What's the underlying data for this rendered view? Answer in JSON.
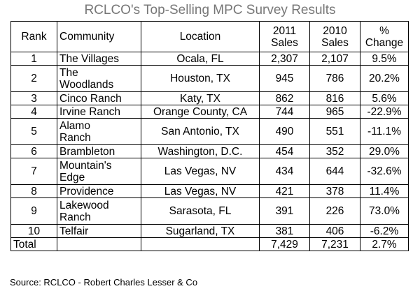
{
  "title": "RCLCO's Top-Selling MPC Survey Results",
  "headers": {
    "rank": "Rank",
    "community": "Community",
    "location": "Location",
    "sales_2011_line1": "2011",
    "sales_2011_line2": "Sales",
    "sales_2010_line1": "2010",
    "sales_2010_line2": "Sales",
    "change_line1": "%",
    "change_line2": "Change"
  },
  "rows": [
    {
      "rank": "1",
      "community_line1": "The Villages",
      "community_line2": "",
      "location": "Ocala, FL",
      "sales_2011": "2,307",
      "sales_2010": "2,107",
      "change": "9.5%"
    },
    {
      "rank": "2",
      "community_line1": "The",
      "community_line2": "Woodlands",
      "location": "Houston, TX",
      "sales_2011": "945",
      "sales_2010": "786",
      "change": "20.2%"
    },
    {
      "rank": "3",
      "community_line1": "Cinco Ranch",
      "community_line2": "",
      "location": "Katy, TX",
      "sales_2011": "862",
      "sales_2010": "816",
      "change": "5.6%"
    },
    {
      "rank": "4",
      "community_line1": "Irvine Ranch",
      "community_line2": "",
      "location": "Orange County, CA",
      "sales_2011": "744",
      "sales_2010": "965",
      "change": "-22.9%"
    },
    {
      "rank": "5",
      "community_line1": "Alamo",
      "community_line2": "Ranch",
      "location": "San Antonio, TX",
      "sales_2011": "490",
      "sales_2010": "551",
      "change": "-11.1%"
    },
    {
      "rank": "6",
      "community_line1": "Brambleton",
      "community_line2": "",
      "location": "Washington, D.C.",
      "sales_2011": "454",
      "sales_2010": "352",
      "change": "29.0%"
    },
    {
      "rank": "7",
      "community_line1": "Mountain's",
      "community_line2": "Edge",
      "location": "Las Vegas, NV",
      "sales_2011": "434",
      "sales_2010": "644",
      "change": "-32.6%"
    },
    {
      "rank": "8",
      "community_line1": "Providence",
      "community_line2": "",
      "location": "Las Vegas, NV",
      "sales_2011": "421",
      "sales_2010": "378",
      "change": "11.4%"
    },
    {
      "rank": "9",
      "community_line1": "Lakewood",
      "community_line2": "Ranch",
      "location": "Sarasota, FL",
      "sales_2011": "391",
      "sales_2010": "226",
      "change": "73.0%"
    },
    {
      "rank": "10",
      "community_line1": "Telfair",
      "community_line2": "",
      "location": "Sugarland, TX",
      "sales_2011": "381",
      "sales_2010": "406",
      "change": "-6.2%"
    }
  ],
  "total": {
    "label": "Total",
    "sales_2011": "7,429",
    "sales_2010": "7,231",
    "change": "2.7%"
  },
  "source": "Source: RCLCO - Robert Charles Lesser & Co"
}
